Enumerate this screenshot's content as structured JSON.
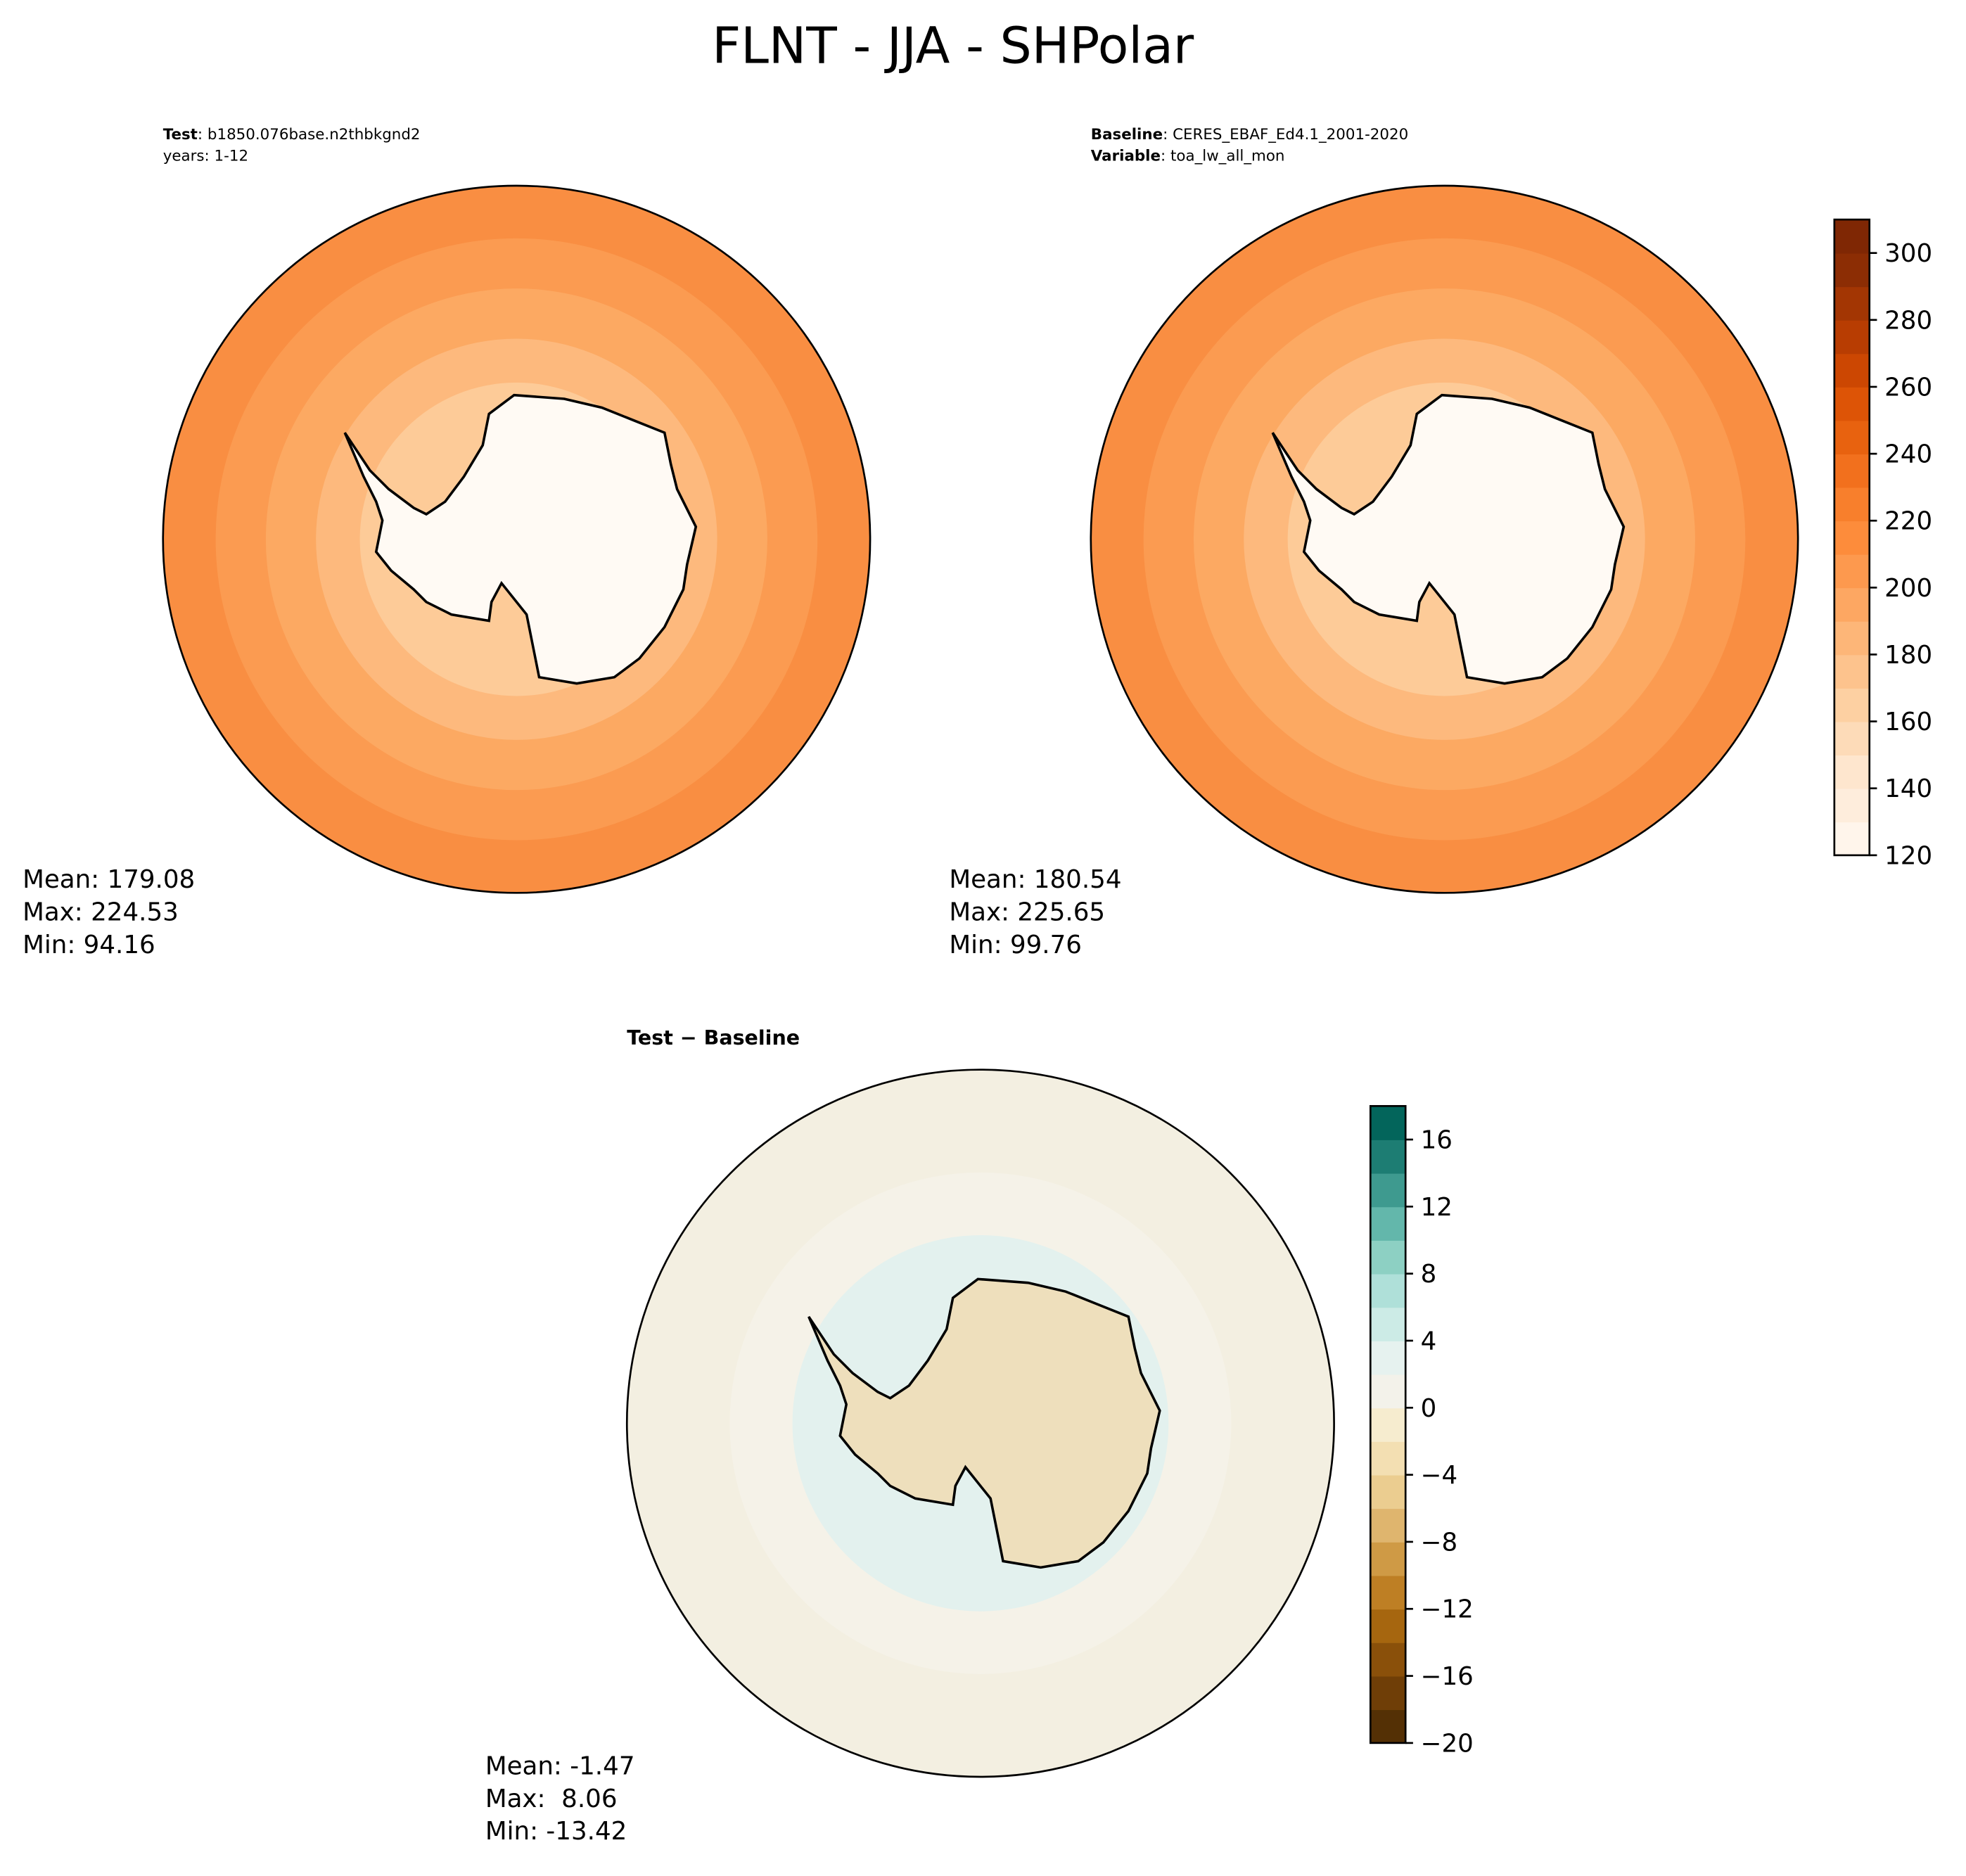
{
  "title": "FLNT - JJA - SHPolar",
  "panels": [
    {
      "header": [
        {
          "key": "Test",
          "value": ": b1850.076base.n2thbkgnd2"
        },
        {
          "key": null,
          "value": "years: 1-12"
        }
      ],
      "stats": [
        "Mean: 179.08",
        "Max: 224.53",
        "Min: 94.16"
      ]
    },
    {
      "header": [
        {
          "key": "Baseline",
          "value": ": CERES_EBAF_Ed4.1_2001-2020"
        },
        {
          "key": "Variable",
          "value": ": toa_lw_all_mon"
        }
      ],
      "stats": [
        "Mean: 180.54",
        "Max: 225.65",
        "Min: 99.76"
      ]
    },
    {
      "header": [
        {
          "key": "Test − Baseline",
          "value": null
        }
      ],
      "stats": [
        "Mean: -1.47",
        "Max:  8.06",
        "Min: -13.42"
      ]
    }
  ],
  "colorbars": [
    {
      "lim": [
        120,
        310
      ],
      "ticks": [
        120,
        140,
        160,
        180,
        200,
        220,
        240,
        260,
        280,
        300
      ],
      "colors": [
        "#fff5eb",
        "#feeddc",
        "#fee6ce",
        "#fddbb8",
        "#fdd0a2",
        "#fdc38d",
        "#fdb678",
        "#fda762",
        "#fd994e",
        "#fd8c3b",
        "#f87f2c",
        "#f2701d",
        "#e8620f",
        "#dd5406",
        "#cc4702",
        "#b83d02",
        "#a33603",
        "#8c2d04",
        "#7f2704"
      ]
    },
    {
      "lim": [
        -20,
        18
      ],
      "ticks": [
        {
          "value": -20,
          "label": "−20"
        },
        {
          "value": -16,
          "label": "−16"
        },
        {
          "value": -12,
          "label": "−12"
        },
        {
          "value": -8,
          "label": "−8"
        },
        {
          "value": -4,
          "label": "−4"
        },
        0,
        4,
        8,
        12,
        16
      ],
      "colors": [
        "#543005",
        "#6f3e07",
        "#8a500a",
        "#a6660f",
        "#be7f24",
        "#cf9a45",
        "#dfb56e",
        "#ebcd90",
        "#f3dfb2",
        "#f6eccf",
        "#f3f2ea",
        "#e6f2ef",
        "#ccebe6",
        "#afe0d9",
        "#8dd0c3",
        "#63b7ab",
        "#3e9a8f",
        "#1d7d73",
        "#03655b"
      ]
    }
  ]
}
